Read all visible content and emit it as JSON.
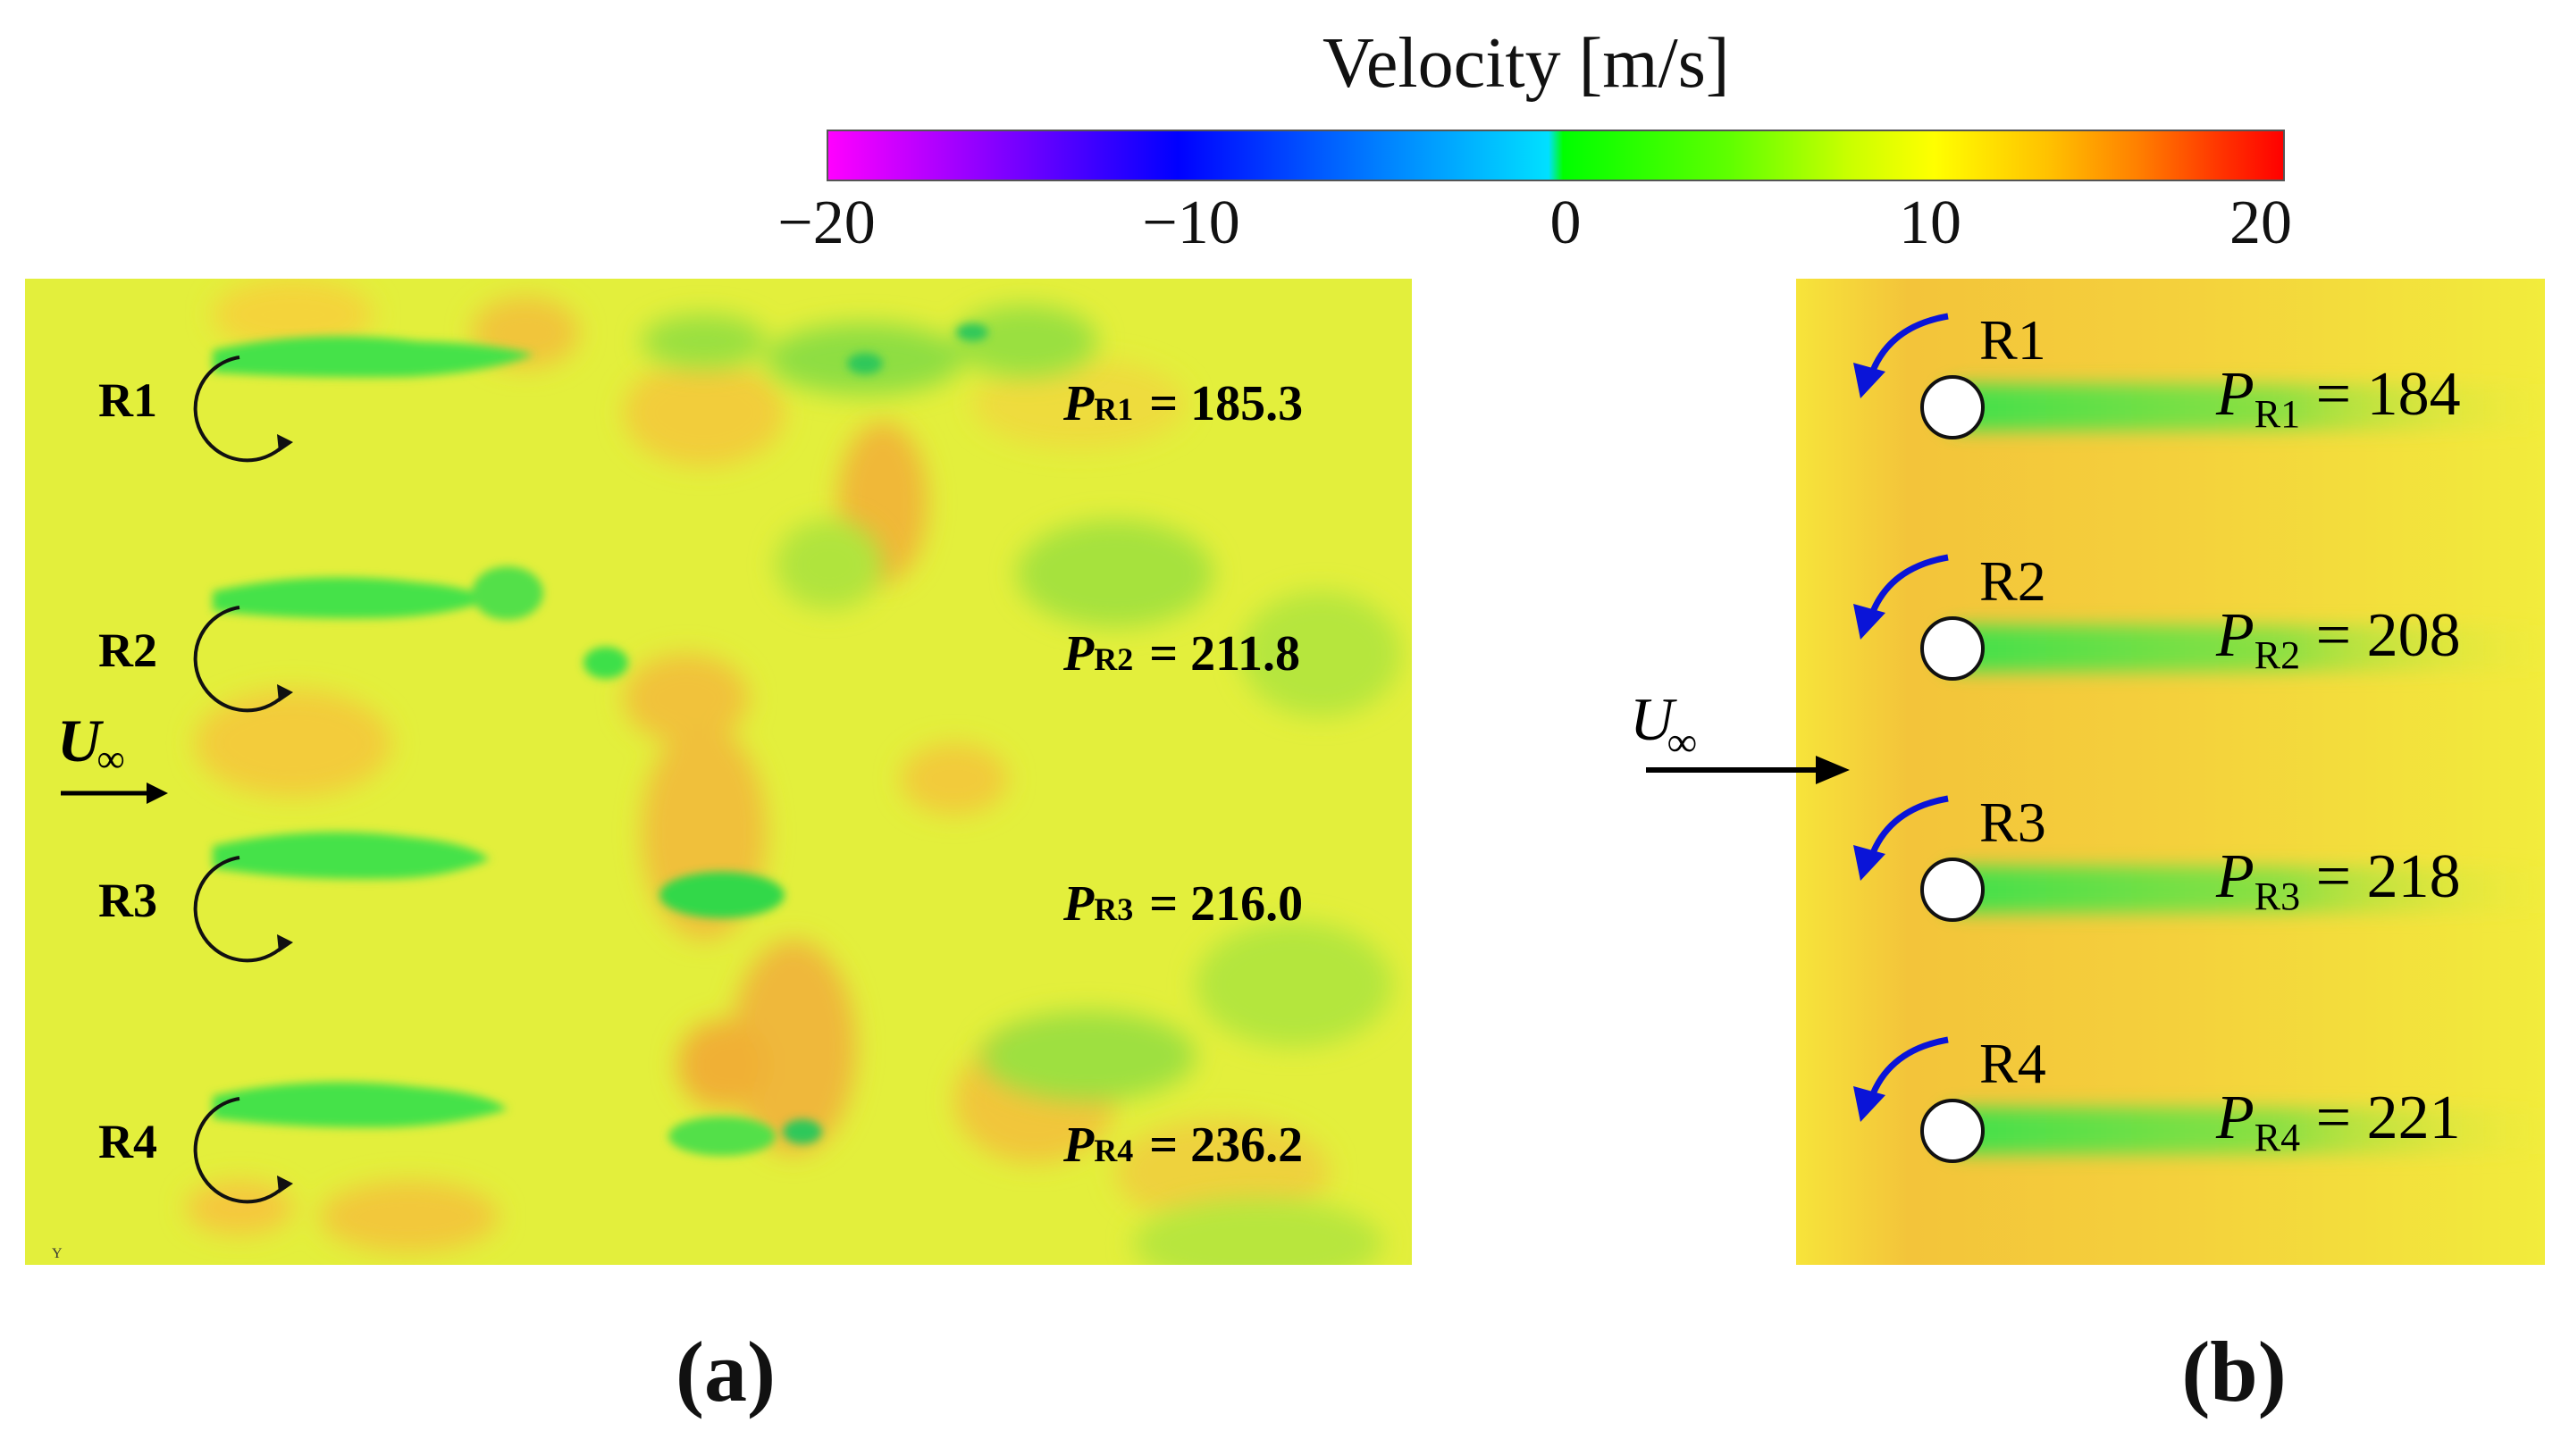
{
  "colorbar": {
    "title": "Velocity [m/s]",
    "ticks": [
      "−20",
      "−10",
      "0",
      "10",
      "20"
    ],
    "range": [
      -20,
      20
    ]
  },
  "panel_a": {
    "caption": "(a)",
    "flow_label": "U",
    "flow_sub": "∞",
    "rotors": [
      {
        "name": "R1",
        "P_label": "P",
        "P_sub": "R1",
        "value": "185.3"
      },
      {
        "name": "R2",
        "P_label": "P",
        "P_sub": "R2",
        "value": "211.8"
      },
      {
        "name": "R3",
        "P_label": "P",
        "P_sub": "R3",
        "value": "216.0"
      },
      {
        "name": "R4",
        "P_label": "P",
        "P_sub": "R4",
        "value": "236.2"
      }
    ]
  },
  "panel_b": {
    "caption": "(b)",
    "flow_label": "U",
    "flow_sub": "∞",
    "rotors": [
      {
        "name": "R1",
        "P_label": "P",
        "P_sub": "R1",
        "value": "184"
      },
      {
        "name": "R2",
        "P_label": "P",
        "P_sub": "R2",
        "value": "208"
      },
      {
        "name": "R3",
        "P_label": "P",
        "P_sub": "R3",
        "value": "218"
      },
      {
        "name": "R4",
        "P_label": "P",
        "P_sub": "R4",
        "value": "221"
      }
    ]
  },
  "colors": {
    "field_yellow": "#e6f23a",
    "field_orange": "#f5c83c",
    "wake_green": "#52e04a",
    "arrow_blue": "#0a14d8"
  }
}
